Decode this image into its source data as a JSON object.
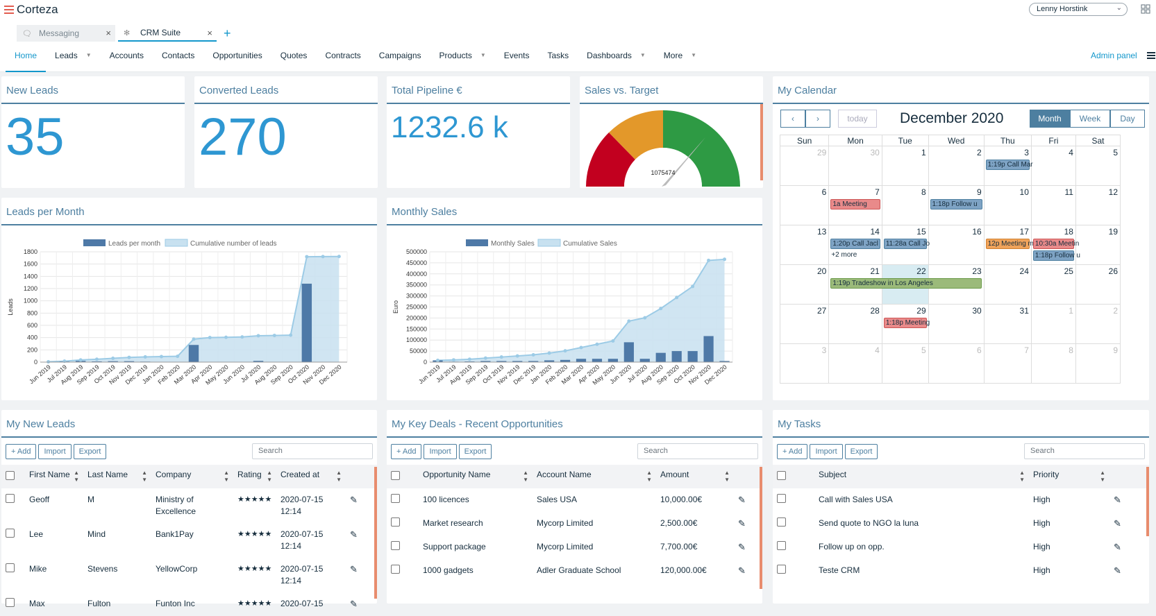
{
  "brand": {
    "name": "Corteza"
  },
  "user": {
    "name": "Lenny Horstink"
  },
  "app_tabs": [
    {
      "label": "Messaging"
    },
    {
      "label": "CRM Suite"
    }
  ],
  "nav": {
    "items": [
      "Home",
      "Leads",
      "Accounts",
      "Contacts",
      "Opportunities",
      "Quotes",
      "Contracts",
      "Campaigns",
      "Products",
      "Events",
      "Tasks",
      "Dashboards",
      "More"
    ],
    "admin": "Admin panel"
  },
  "metrics": {
    "new_leads": {
      "title": "New Leads",
      "value": "35"
    },
    "converted": {
      "title": "Converted Leads",
      "value": "270"
    },
    "pipeline": {
      "title": "Total Pipeline €",
      "value": "1232.6 k"
    },
    "target": {
      "title": "Sales vs. Target",
      "value": "1075474"
    }
  },
  "charts": {
    "leads": {
      "title": "Leads per Month",
      "ylabel": "Leads",
      "legend": [
        "Leads per month",
        "Cumulative number of leads"
      ]
    },
    "sales": {
      "title": "Monthly Sales",
      "ylabel": "Euro",
      "legend": [
        "Monthly Sales",
        "Cumulative Sales"
      ]
    }
  },
  "chart_data": [
    {
      "type": "bar",
      "title": "Leads per Month",
      "ylabel": "Leads",
      "ylim": [
        0,
        1800
      ],
      "categories": [
        "Jun 2019",
        "Jul 2019",
        "Aug 2019",
        "Sep 2019",
        "Oct 2019",
        "Nov 2019",
        "Dec 2019",
        "Jan 2020",
        "Feb 2020",
        "Mar 2020",
        "Apr 2020",
        "May 2020",
        "Jun 2020",
        "Jul 2020",
        "Aug 2020",
        "Sep 2020",
        "Oct 2020",
        "Nov 2020",
        "Dec 2020"
      ],
      "series": [
        {
          "name": "Leads per month",
          "values": [
            5,
            10,
            20,
            12,
            15,
            15,
            8,
            5,
            5,
            280,
            5,
            2,
            5,
            20,
            5,
            5,
            1280,
            2,
            2
          ]
        },
        {
          "name": "Cumulative number of leads",
          "values": [
            5,
            15,
            35,
            47,
            62,
            77,
            85,
            90,
            95,
            375,
            400,
            405,
            410,
            430,
            435,
            440,
            1720,
            1722,
            1724
          ]
        }
      ]
    },
    {
      "type": "bar",
      "title": "Monthly Sales",
      "ylabel": "Euro",
      "ylim": [
        0,
        500000
      ],
      "categories": [
        "Jun 2019",
        "Jul 2019",
        "Aug 2019",
        "Sep 2019",
        "Oct 2019",
        "Nov 2019",
        "Dec 2019",
        "Jan 2020",
        "Feb 2020",
        "Mar 2020",
        "Apr 2020",
        "May 2020",
        "Jun 2020",
        "Jul 2020",
        "Aug 2020",
        "Sep 2020",
        "Oct 2020",
        "Nov 2020",
        "Dec 2020"
      ],
      "series": [
        {
          "name": "Monthly Sales",
          "values": [
            8000,
            2000,
            3000,
            5000,
            5000,
            5000,
            5000,
            8000,
            10000,
            15000,
            15000,
            15000,
            90000,
            15000,
            42000,
            50000,
            50000,
            118000,
            5000
          ]
        },
        {
          "name": "Cumulative Sales",
          "values": [
            8000,
            10000,
            13000,
            18000,
            23000,
            28000,
            33000,
            41000,
            51000,
            66000,
            81000,
            96000,
            186000,
            201000,
            243000,
            293000,
            343000,
            461000,
            466000
          ]
        }
      ]
    }
  ],
  "calendar": {
    "title": "My Calendar",
    "month": "December 2020",
    "today": "today",
    "views": [
      "Month",
      "Week",
      "Day"
    ],
    "weekdays": [
      "Sun",
      "Mon",
      "Tue",
      "Wed",
      "Thu",
      "Fri",
      "Sat"
    ],
    "weeks": [
      [
        "29",
        "30",
        "1",
        "2",
        "3",
        "4",
        "5"
      ],
      [
        "6",
        "7",
        "8",
        "9",
        "10",
        "11",
        "12"
      ],
      [
        "13",
        "14",
        "15",
        "16",
        "17",
        "18",
        "19"
      ],
      [
        "20",
        "21",
        "22",
        "23",
        "24",
        "25",
        "26"
      ],
      [
        "27",
        "28",
        "29",
        "30",
        "31",
        "1",
        "2"
      ],
      [
        "3",
        "4",
        "5",
        "6",
        "7",
        "8",
        "9"
      ]
    ],
    "events": {
      "e1": "1:19p Call Mar",
      "e2": "1a Meeting",
      "e3": "1:18p Follow u",
      "e4": "1:20p Call Jacl",
      "e5": "11:28a Call Jo",
      "e6": "12p Meeting m",
      "e7": "10:30a Meetin",
      "e8": "1:18p Follow u",
      "more": "+2 more",
      "e9": "1:19p Tradeshow in Los Angeles",
      "e10": "1:18p Meeting"
    }
  },
  "colors": {
    "accent": "#1397cb",
    "title": "#4d7fa0",
    "metric": "#2e97d2"
  },
  "leads_table": {
    "title": "My New Leads",
    "add": "+ Add",
    "import": "Import",
    "export": "Export",
    "search": "Search",
    "headers": [
      "First Name",
      "Last Name",
      "Company",
      "Rating",
      "Created at"
    ],
    "rows": [
      {
        "first": "Geoff",
        "last": "M",
        "company": "Ministry of Excellence",
        "rating": "★★★★★",
        "created": "2020-07-15 12:14"
      },
      {
        "first": "Lee",
        "last": "Mind",
        "company": "Bank1Pay",
        "rating": "★★★★★",
        "created": "2020-07-15 12:14"
      },
      {
        "first": "Mike",
        "last": "Stevens",
        "company": "YellowCorp",
        "rating": "★★★★★",
        "created": "2020-07-15 12:14"
      },
      {
        "first": "Max",
        "last": "Fulton",
        "company": "Funton Inc",
        "rating": "★★★★★",
        "created": "2020-07-15"
      }
    ]
  },
  "deals_table": {
    "title": "My Key Deals - Recent Opportunities",
    "add": "+ Add",
    "import": "Import",
    "export": "Export",
    "search": "Search",
    "headers": [
      "Opportunity Name",
      "Account Name",
      "Amount"
    ],
    "rows": [
      {
        "name": "100 licences",
        "account": "Sales USA",
        "amount": "10,000.00€"
      },
      {
        "name": "Market research",
        "account": "Mycorp Limited",
        "amount": "2,500.00€"
      },
      {
        "name": "Support package",
        "account": "Mycorp Limited",
        "amount": "7,700.00€"
      },
      {
        "name": "1000 gadgets",
        "account": "Adler Graduate School",
        "amount": "120,000.00€"
      }
    ]
  },
  "tasks_table": {
    "title": "My Tasks",
    "add": "+ Add",
    "import": "Import",
    "export": "Export",
    "search": "Search",
    "headers": [
      "Subject",
      "Priority"
    ],
    "rows": [
      {
        "subject": "Call with Sales USA",
        "priority": "High"
      },
      {
        "subject": "Send quote to NGO la luna",
        "priority": "High"
      },
      {
        "subject": "Follow up on opp.",
        "priority": "High"
      },
      {
        "subject": "Teste CRM",
        "priority": "High"
      }
    ]
  }
}
